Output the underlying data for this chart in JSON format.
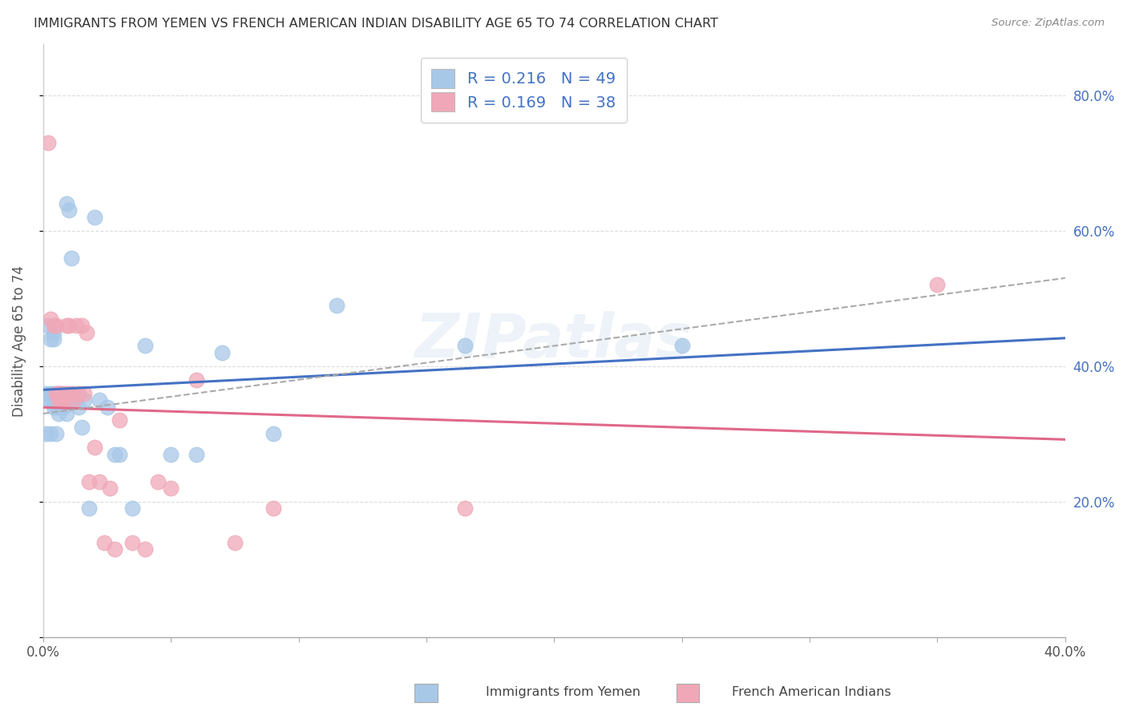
{
  "title": "IMMIGRANTS FROM YEMEN VS FRENCH AMERICAN INDIAN DISABILITY AGE 65 TO 74 CORRELATION CHART",
  "source": "Source: ZipAtlas.com",
  "ylabel": "Disability Age 65 to 74",
  "x_min": 0.0,
  "x_max": 0.4,
  "y_min": 0.0,
  "y_max": 0.875,
  "x_ticks": [
    0.0,
    0.05,
    0.1,
    0.15,
    0.2,
    0.25,
    0.3,
    0.35,
    0.4
  ],
  "x_tick_labels_show": [
    "0.0%",
    "",
    "",
    "",
    "",
    "",
    "",
    "",
    "40.0%"
  ],
  "y_ticks": [
    0.0,
    0.2,
    0.4,
    0.6,
    0.8
  ],
  "y_tick_labels_right": [
    "",
    "20.0%",
    "40.0%",
    "60.0%",
    "80.0%"
  ],
  "r1": 0.216,
  "n1": 49,
  "r2": 0.169,
  "n2": 38,
  "color_blue": "#a8c8e8",
  "color_pink": "#f0a8b8",
  "trend_blue": "#4472c4",
  "trend_pink": "#e06888",
  "trend_gray": "#aaaaaa",
  "legend_label1": "Immigrants from Yemen",
  "legend_label2": "French American Indians",
  "bg_color": "#ffffff",
  "grid_color": "#dddddd",
  "watermark": "ZIPatlas",
  "blue_x": [
    0.001,
    0.001,
    0.002,
    0.002,
    0.003,
    0.003,
    0.003,
    0.003,
    0.004,
    0.004,
    0.004,
    0.004,
    0.005,
    0.005,
    0.005,
    0.005,
    0.006,
    0.006,
    0.006,
    0.007,
    0.007,
    0.007,
    0.008,
    0.008,
    0.009,
    0.009,
    0.01,
    0.01,
    0.011,
    0.012,
    0.013,
    0.014,
    0.015,
    0.016,
    0.018,
    0.02,
    0.022,
    0.025,
    0.028,
    0.03,
    0.035,
    0.04,
    0.05,
    0.06,
    0.07,
    0.09,
    0.115,
    0.165,
    0.25
  ],
  "blue_y": [
    0.36,
    0.3,
    0.46,
    0.35,
    0.44,
    0.36,
    0.35,
    0.3,
    0.45,
    0.44,
    0.36,
    0.34,
    0.36,
    0.35,
    0.34,
    0.3,
    0.36,
    0.35,
    0.33,
    0.36,
    0.35,
    0.34,
    0.35,
    0.34,
    0.64,
    0.33,
    0.63,
    0.35,
    0.56,
    0.36,
    0.35,
    0.34,
    0.31,
    0.35,
    0.19,
    0.62,
    0.35,
    0.34,
    0.27,
    0.27,
    0.19,
    0.43,
    0.27,
    0.27,
    0.42,
    0.3,
    0.49,
    0.43,
    0.43
  ],
  "pink_x": [
    0.002,
    0.003,
    0.004,
    0.005,
    0.005,
    0.006,
    0.006,
    0.007,
    0.007,
    0.008,
    0.008,
    0.009,
    0.009,
    0.01,
    0.01,
    0.011,
    0.012,
    0.013,
    0.014,
    0.015,
    0.016,
    0.017,
    0.018,
    0.02,
    0.022,
    0.024,
    0.026,
    0.028,
    0.03,
    0.035,
    0.04,
    0.045,
    0.05,
    0.06,
    0.075,
    0.09,
    0.165,
    0.35
  ],
  "pink_y": [
    0.73,
    0.47,
    0.46,
    0.46,
    0.36,
    0.36,
    0.35,
    0.36,
    0.35,
    0.36,
    0.35,
    0.46,
    0.36,
    0.46,
    0.36,
    0.36,
    0.35,
    0.46,
    0.36,
    0.46,
    0.36,
    0.45,
    0.23,
    0.28,
    0.23,
    0.14,
    0.22,
    0.13,
    0.32,
    0.14,
    0.13,
    0.23,
    0.22,
    0.38,
    0.14,
    0.19,
    0.19,
    0.52
  ]
}
